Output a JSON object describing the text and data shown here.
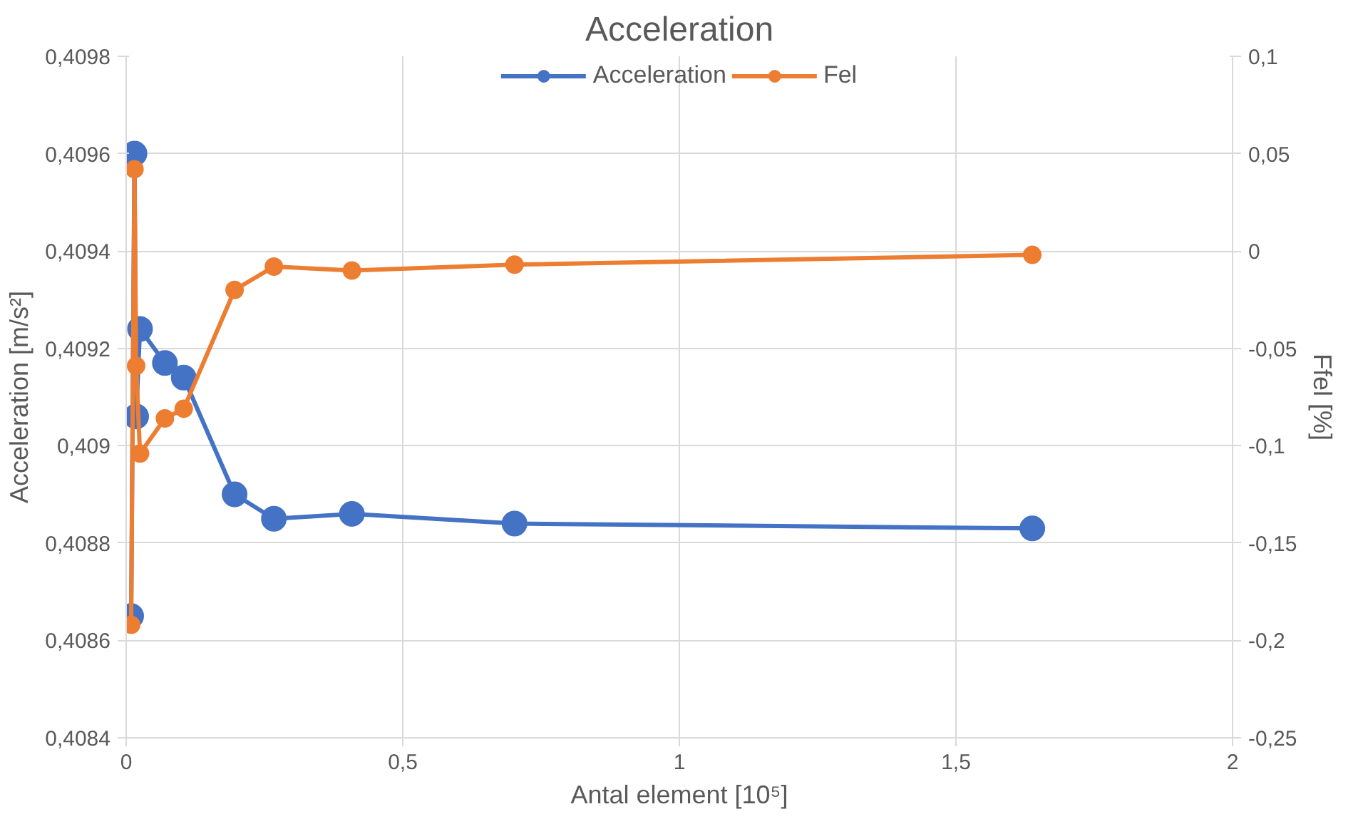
{
  "chart_data": {
    "type": "line",
    "title": "Acceleration",
    "xlabel": "Antal element [10⁵]",
    "ylabel": "Acceleration [m/s²]",
    "y2label": "Ffel [%]",
    "x": [
      0.009,
      0.015,
      0.018,
      0.025,
      0.07,
      0.104,
      0.196,
      0.267,
      0.408,
      0.702,
      1.638
    ],
    "series": [
      {
        "name": "Acceleration",
        "color": "#4472c4",
        "values": [
          0.40865,
          0.4096,
          0.40906,
          0.40924,
          0.40917,
          0.40914,
          0.4089,
          0.40885,
          0.40886,
          0.40884,
          0.40883
        ]
      },
      {
        "name": "Fel",
        "color": "#ed7d31",
        "axis": "y2",
        "values": [
          -0.192,
          0.042,
          -0.059,
          -0.104,
          -0.086,
          -0.081,
          -0.02,
          -0.008,
          -0.01,
          -0.007,
          -0.002
        ]
      }
    ],
    "xlim": [
      0,
      2
    ],
    "xticks": [
      0,
      {
        "value": 0.5,
        "label": "0,5"
      },
      1,
      {
        "value": 1.5,
        "label": "1,5"
      },
      2
    ],
    "ylim": [
      0.4084,
      0.4098
    ],
    "yticks": [
      {
        "value": 0.4084,
        "label": "0,4084"
      },
      {
        "value": 0.4086,
        "label": "0,4086"
      },
      {
        "value": 0.4088,
        "label": "0,4088"
      },
      {
        "value": 0.409,
        "label": "0,409"
      },
      {
        "value": 0.4092,
        "label": "0,4092"
      },
      {
        "value": 0.4094,
        "label": "0,4094"
      },
      {
        "value": 0.4096,
        "label": "0,4096"
      },
      {
        "value": 0.4098,
        "label": "0,4098"
      }
    ],
    "y2lim": [
      -0.25,
      0.1
    ],
    "y2ticks": [
      {
        "value": -0.25,
        "label": "-0,25"
      },
      {
        "value": -0.2,
        "label": "-0,2"
      },
      {
        "value": -0.15,
        "label": "-0,15"
      },
      {
        "value": -0.1,
        "label": "-0,1"
      },
      {
        "value": -0.05,
        "label": "-0,05"
      },
      0,
      {
        "value": 0.05,
        "label": "0,05"
      },
      {
        "value": 0.1,
        "label": "0,1"
      }
    ],
    "grid": true,
    "legend": "top",
    "marker": "circle",
    "line_style": "solid"
  }
}
